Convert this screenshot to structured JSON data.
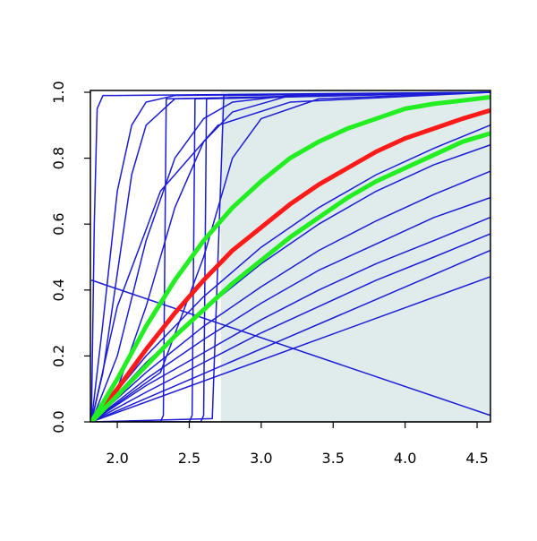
{
  "chart_data": {
    "type": "line",
    "xlim": [
      1.813,
      4.593
    ],
    "ylim": [
      0,
      1
    ],
    "xticks": [
      {
        "value": 2.0,
        "label": "2.0"
      },
      2.5,
      {
        "value": 3.0,
        "label": "3.0"
      },
      3.5,
      {
        "value": 4.0,
        "label": "4.0"
      },
      4.5
    ],
    "yticks": [
      {
        "value": 0,
        "label": "0.0"
      },
      0.2,
      0.4,
      0.6,
      0.8,
      {
        "value": 1,
        "label": "1.0"
      }
    ],
    "shade_from": 2.72,
    "shade_color": "#e0ecec",
    "series": [
      {
        "color": "#1c1cd6",
        "width": 1.5,
        "x": [
          1.82,
          1.84,
          1.86,
          1.9,
          4.59
        ],
        "values": [
          0,
          0.6,
          0.95,
          0.99,
          1
        ]
      },
      {
        "color": "#1c1cd6",
        "width": 1.5,
        "x": [
          1.82,
          1.9,
          2.0,
          2.1,
          2.2,
          2.4,
          4.59
        ],
        "values": [
          0,
          0.3,
          0.7,
          0.9,
          0.97,
          0.99,
          1
        ]
      },
      {
        "color": "#1c1cd6",
        "width": 1.5,
        "x": [
          1.82,
          1.9,
          2.0,
          2.1,
          2.2,
          2.4,
          4.59
        ],
        "values": [
          0,
          0.15,
          0.45,
          0.75,
          0.9,
          0.98,
          1
        ]
      },
      {
        "color": "#1c1cd6",
        "width": 1.5,
        "x": [
          1.82,
          2.0,
          2.2,
          2.4,
          2.6,
          2.8,
          3.2,
          4.59
        ],
        "values": [
          0,
          0.2,
          0.55,
          0.8,
          0.92,
          0.97,
          0.99,
          1
        ]
      },
      {
        "color": "#1c1cd6",
        "width": 1.5,
        "x": [
          1.82,
          2.0,
          2.2,
          2.4,
          2.6,
          2.8,
          3.2,
          4.59
        ],
        "values": [
          0,
          0.1,
          0.35,
          0.65,
          0.85,
          0.94,
          0.99,
          1
        ]
      },
      {
        "color": "#1c1cd6",
        "width": 1.5,
        "x": [
          1.82,
          2.0,
          2.3,
          2.7,
          3.2,
          4.59
        ],
        "values": [
          0,
          0.35,
          0.7,
          0.9,
          0.97,
          1
        ]
      },
      {
        "color": "#1c1cd6",
        "width": 1.5,
        "x": [
          1.82,
          2.3,
          2.32,
          2.34,
          4.59
        ],
        "values": [
          0,
          0,
          0.02,
          0.98,
          1
        ]
      },
      {
        "color": "#1c1cd6",
        "width": 1.5,
        "x": [
          1.82,
          2.5,
          2.52,
          2.54,
          4.59
        ],
        "values": [
          0,
          0,
          0.02,
          0.98,
          1
        ]
      },
      {
        "color": "#1c1cd6",
        "width": 1.5,
        "x": [
          1.82,
          2.58,
          2.6,
          2.62,
          4.59
        ],
        "values": [
          0,
          0,
          0.02,
          0.98,
          1
        ]
      },
      {
        "color": "#1c1cd6",
        "width": 1.5,
        "x": [
          1.82,
          2.66,
          2.7,
          2.74,
          4.59
        ],
        "values": [
          0,
          0.01,
          0.5,
          0.99,
          1
        ]
      },
      {
        "color": "#1c1cd6",
        "width": 1.5,
        "x": [
          1.82,
          2.3,
          2.6,
          2.8,
          3.0,
          3.4,
          4.59
        ],
        "values": [
          0,
          0.15,
          0.5,
          0.8,
          0.92,
          0.98,
          1
        ]
      },
      {
        "color": "#1c1cd6",
        "width": 1.5,
        "x": [
          1.82,
          2.2,
          2.6,
          3.0,
          3.4,
          3.8,
          4.2,
          4.59
        ],
        "values": [
          0,
          0.2,
          0.38,
          0.53,
          0.65,
          0.75,
          0.83,
          0.9
        ]
      },
      {
        "color": "#1c1cd6",
        "width": 1.5,
        "x": [
          1.82,
          2.2,
          2.6,
          3.0,
          3.4,
          3.8,
          4.2,
          4.59
        ],
        "values": [
          0,
          0.18,
          0.34,
          0.48,
          0.6,
          0.7,
          0.78,
          0.84
        ]
      },
      {
        "color": "#1c1cd6",
        "width": 1.5,
        "x": [
          1.82,
          2.2,
          2.6,
          3.0,
          3.4,
          3.8,
          4.2,
          4.59
        ],
        "values": [
          0,
          0.15,
          0.29,
          0.41,
          0.52,
          0.61,
          0.69,
          0.76
        ]
      },
      {
        "color": "#1c1cd6",
        "width": 1.5,
        "x": [
          1.82,
          2.2,
          2.6,
          3.0,
          3.4,
          3.8,
          4.2,
          4.59
        ],
        "values": [
          0,
          0.13,
          0.25,
          0.36,
          0.46,
          0.54,
          0.62,
          0.68
        ]
      },
      {
        "color": "#1c1cd6",
        "width": 1.5,
        "x": [
          1.82,
          2.2,
          2.6,
          3.0,
          3.4,
          3.8,
          4.2,
          4.59
        ],
        "values": [
          0,
          0.11,
          0.21,
          0.31,
          0.4,
          0.48,
          0.55,
          0.62
        ]
      },
      {
        "color": "#1c1cd6",
        "width": 1.5,
        "x": [
          1.82,
          2.2,
          2.6,
          3.0,
          3.4,
          3.8,
          4.2,
          4.59
        ],
        "values": [
          0,
          0.09,
          0.18,
          0.27,
          0.35,
          0.43,
          0.5,
          0.57
        ]
      },
      {
        "color": "#1c1cd6",
        "width": 1.5,
        "x": [
          1.82,
          4.59
        ],
        "values": [
          0,
          0.52
        ]
      },
      {
        "color": "#1c1cd6",
        "width": 1.5,
        "x": [
          1.82,
          4.59
        ],
        "values": [
          0,
          0.44
        ]
      },
      {
        "color": "#1c1cd6",
        "width": 1.5,
        "x": [
          1.82,
          4.59
        ],
        "values": [
          0.43,
          0.02
        ]
      },
      {
        "color": "#ff1a1a",
        "width": 5,
        "x": [
          1.82,
          2.0,
          2.2,
          2.4,
          2.6,
          2.8,
          3.0,
          3.2,
          3.4,
          3.6,
          3.8,
          4.0,
          4.2,
          4.4,
          4.59
        ],
        "values": [
          0,
          0.1,
          0.22,
          0.33,
          0.43,
          0.52,
          0.59,
          0.66,
          0.72,
          0.77,
          0.82,
          0.86,
          0.89,
          0.92,
          0.945
        ]
      },
      {
        "color": "#22ee22",
        "width": 5,
        "x": [
          1.82,
          2.0,
          2.2,
          2.4,
          2.6,
          2.8,
          3.0,
          3.2,
          3.4,
          3.6,
          3.8,
          4.0,
          4.2,
          4.4,
          4.59
        ],
        "values": [
          0,
          0.13,
          0.29,
          0.43,
          0.55,
          0.65,
          0.73,
          0.8,
          0.85,
          0.89,
          0.92,
          0.95,
          0.965,
          0.975,
          0.985
        ]
      },
      {
        "color": "#22ee22",
        "width": 5,
        "x": [
          1.82,
          2.0,
          2.2,
          2.4,
          2.6,
          2.8,
          3.0,
          3.2,
          3.4,
          3.6,
          3.8,
          4.0,
          4.2,
          4.4,
          4.59
        ],
        "values": [
          0,
          0.08,
          0.17,
          0.26,
          0.34,
          0.42,
          0.49,
          0.56,
          0.62,
          0.68,
          0.73,
          0.77,
          0.81,
          0.85,
          0.875
        ]
      }
    ]
  }
}
